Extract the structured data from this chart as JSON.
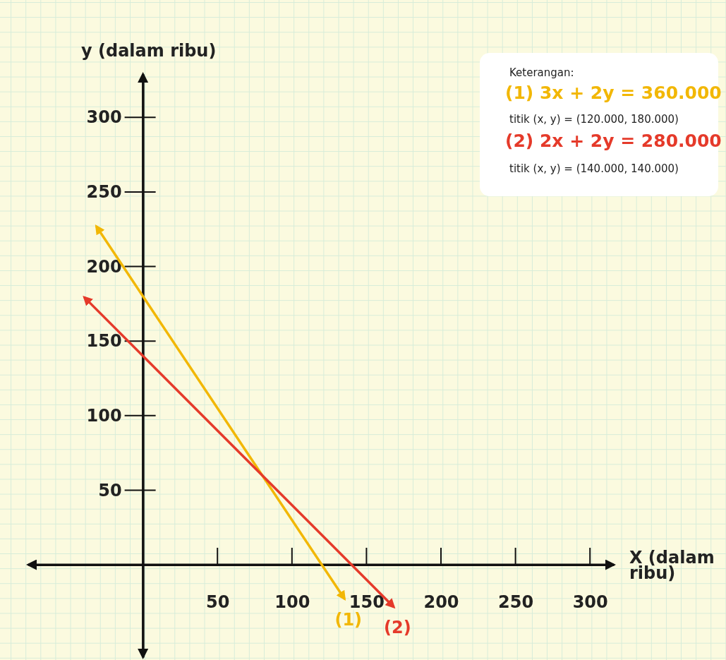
{
  "chart_data": {
    "type": "line",
    "xlabel": "X (dalam ribu)",
    "ylabel": "y (dalam ribu)",
    "xlim": [
      -77,
      316
    ],
    "ylim": [
      -62,
      329
    ],
    "xticks": [
      50,
      100,
      150,
      200,
      250,
      300
    ],
    "yticks": [
      50,
      100,
      150,
      200,
      250,
      300
    ],
    "grid": false,
    "legend": false,
    "marker": "none",
    "line_style": "solid",
    "series": [
      {
        "name": "(1)",
        "color": "#f2b705",
        "x": [
          -31,
          135
        ],
        "values": [
          226.5,
          -22.5
        ]
      },
      {
        "name": "(2)",
        "color": "#e53a2a",
        "x": [
          -39,
          168
        ],
        "values": [
          179,
          -28
        ]
      }
    ],
    "annotations": [
      "Keterangan:",
      "(1) 3x + 2y = 360.000",
      "titik (x, y) = (120.000, 180.000)",
      "(2) 2x + 2y = 280.000",
      "titik (x, y) = (140.000, 140.000)"
    ]
  }
}
